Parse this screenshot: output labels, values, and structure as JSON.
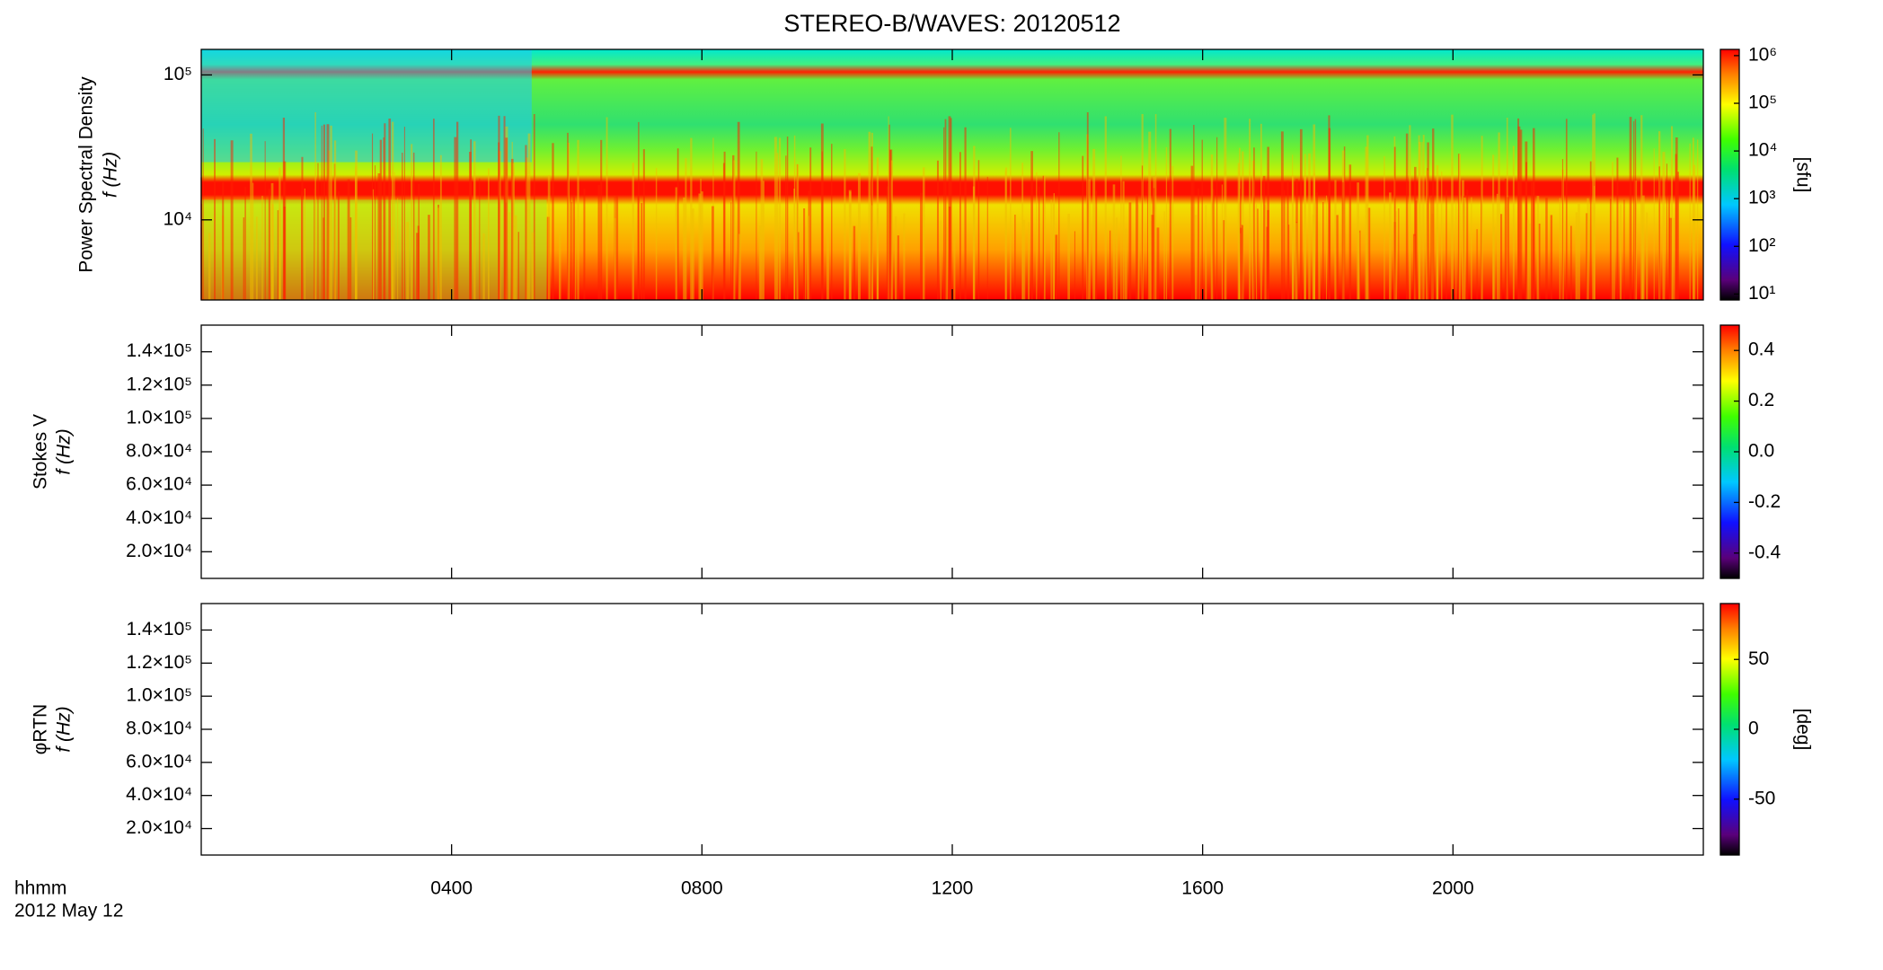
{
  "title": "STEREO-B/WAVES: 20120512",
  "x_axis": {
    "labels": [
      "hhmm",
      "2012 May 12"
    ],
    "xlim": [
      0,
      24
    ],
    "xticks": [
      {
        "value": 4,
        "label": "0400"
      },
      {
        "value": 8,
        "label": "0800"
      },
      {
        "value": 12,
        "label": "1200"
      },
      {
        "value": 16,
        "label": "1600"
      },
      {
        "value": 20,
        "label": "2000"
      }
    ]
  },
  "chart_data": [
    {
      "type": "spectrogram",
      "filled": true,
      "ylabel": [
        "Power Spectral Density",
        "f (Hz)"
      ],
      "ylog": true,
      "ylim": [
        2800,
        150000
      ],
      "yticks": [
        {
          "value": 10000,
          "label": "10⁴"
        },
        {
          "value": 100000,
          "label": "10⁵"
        }
      ],
      "colorbar": {
        "label": "[sfu]",
        "log": true,
        "lim": [
          7.5,
          1350000
        ],
        "ticks": [
          {
            "value": 10,
            "label": "10¹"
          },
          {
            "value": 100,
            "label": "10²"
          },
          {
            "value": 1000,
            "label": "10³"
          },
          {
            "value": 10000,
            "label": "10⁴"
          },
          {
            "value": 100000,
            "label": "10⁵"
          },
          {
            "value": 1000000,
            "label": "10⁶"
          }
        ]
      }
    },
    {
      "type": "spectrogram",
      "filled": false,
      "ylabel": [
        "Stokes V",
        "f (Hz)"
      ],
      "ylog": false,
      "ylim": [
        4000,
        156000
      ],
      "yticks": [
        {
          "value": 20000,
          "label": "2.0×10⁴"
        },
        {
          "value": 40000,
          "label": "4.0×10⁴"
        },
        {
          "value": 60000,
          "label": "6.0×10⁴"
        },
        {
          "value": 80000,
          "label": "8.0×10⁴"
        },
        {
          "value": 100000,
          "label": "1.0×10⁵"
        },
        {
          "value": 120000,
          "label": "1.2×10⁵"
        },
        {
          "value": 140000,
          "label": "1.4×10⁵"
        }
      ],
      "colorbar": {
        "log": false,
        "lim": [
          -0.5,
          0.5
        ],
        "ticks": [
          -0.4,
          -0.2,
          {
            "value": 0,
            "label": "0.0"
          },
          0.2,
          0.4
        ]
      }
    },
    {
      "type": "spectrogram",
      "filled": false,
      "ylabel": [
        "φRTN",
        "f (Hz)"
      ],
      "ylog": false,
      "ylim": [
        4000,
        156000
      ],
      "yticks": [
        {
          "value": 20000,
          "label": "2.0×10⁴"
        },
        {
          "value": 40000,
          "label": "4.0×10⁴"
        },
        {
          "value": 60000,
          "label": "6.0×10⁴"
        },
        {
          "value": 80000,
          "label": "8.0×10⁴"
        },
        {
          "value": 100000,
          "label": "1.0×10⁵"
        },
        {
          "value": 120000,
          "label": "1.2×10⁵"
        },
        {
          "value": 140000,
          "label": "1.4×10⁵"
        }
      ],
      "colorbar": {
        "label": "[deg]",
        "log": false,
        "lim": [
          -90,
          90
        ],
        "ticks": [
          -50,
          0,
          50
        ]
      }
    }
  ]
}
